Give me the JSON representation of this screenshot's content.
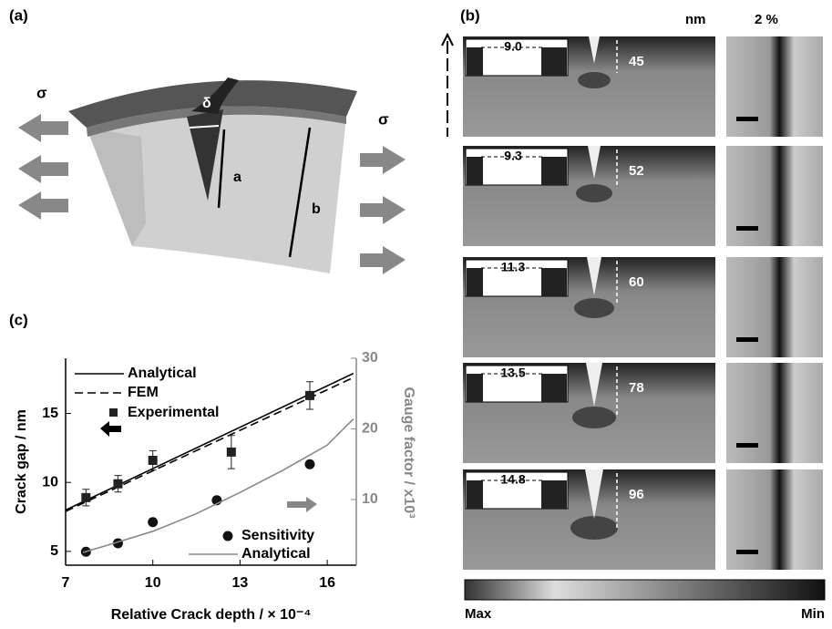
{
  "panel_labels": [
    "(a)",
    "(b)",
    "(c)"
  ],
  "diagram_a": {
    "stress_left": "σ",
    "stress_right": "σ",
    "gap": "δ",
    "crack_depth": "a",
    "thickness": "b"
  },
  "panel_b": {
    "unit_header": "nm",
    "strain_header": "2 %",
    "rows": [
      {
        "width": "9.0",
        "depth": "45"
      },
      {
        "width": "9.3",
        "depth": "52"
      },
      {
        "width": "11.3",
        "depth": "60"
      },
      {
        "width": "13.5",
        "depth": "78"
      },
      {
        "width": "14.8",
        "depth": "96"
      }
    ],
    "colorbar_min_label": "Max",
    "colorbar_max_label": "Min"
  },
  "chart_data": {
    "type": "line",
    "xlabel": "Relative Crack depth / × 10⁻⁴",
    "ylabel": "Crack gap / nm",
    "y2label": "Gauge factor / x10³",
    "xlim": [
      7,
      17
    ],
    "xticks": [
      7,
      10,
      13,
      16
    ],
    "ylim": [
      4,
      19
    ],
    "yticks": [
      5,
      10,
      15
    ],
    "y2lim": [
      0.7,
      30
    ],
    "y2ticks": [
      10,
      20,
      30
    ],
    "series": [
      {
        "name": "Analytical",
        "color": "#000000",
        "style": "solid",
        "x": [
          7,
          16.9
        ],
        "values": [
          8.0,
          17.9
        ]
      },
      {
        "name": "FEM",
        "color": "#000000",
        "style": "dashed",
        "x": [
          7,
          16.9
        ],
        "values": [
          7.9,
          17.6
        ]
      },
      {
        "name": "Experimental",
        "color": "#222222",
        "marker": "square",
        "x": [
          7.7,
          8.8,
          10.0,
          12.7,
          15.4
        ],
        "values": [
          8.9,
          9.9,
          11.6,
          12.2,
          16.3
        ],
        "errors": [
          0.6,
          0.6,
          0.7,
          1.2,
          1.0
        ]
      },
      {
        "name": "Sensitivity",
        "color": "#111111",
        "marker": "circle",
        "axis": "y2",
        "x": [
          7.7,
          8.8,
          10.0,
          12.2,
          15.4
        ],
        "values": [
          2.6,
          3.8,
          6.8,
          9.9,
          15.0
        ]
      },
      {
        "name": "Analytical",
        "color": "#888888",
        "style": "solid",
        "axis": "y2",
        "x": [
          7.6,
          8.5,
          10,
          11.5,
          13,
          14.5,
          16,
          16.9
        ],
        "values": [
          2.5,
          3.6,
          5.5,
          8.0,
          11,
          14.2,
          17.7,
          21.4
        ]
      }
    ]
  }
}
